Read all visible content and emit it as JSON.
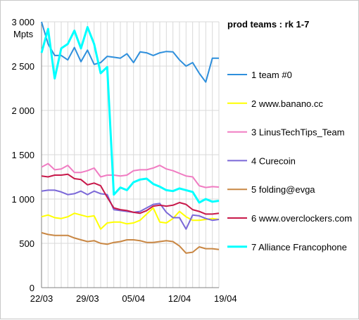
{
  "chart_data": {
    "type": "line",
    "title": "prod teams : rk 1-7",
    "ylabel": "Mpts",
    "xlabel": "",
    "ylim": [
      0,
      3000
    ],
    "yticks": [
      0,
      500,
      1000,
      1500,
      2000,
      2500,
      3000
    ],
    "ytick_labels": [
      "0",
      "500",
      "1 000",
      "1 500",
      "2 000",
      "2 500",
      "3 000"
    ],
    "x_start": "2020-03-22",
    "xticks": [
      "22/03",
      "29/03",
      "05/04",
      "12/04",
      "19/04"
    ],
    "grid": true,
    "legend_position": "right",
    "series": [
      {
        "name": "1 team #0",
        "color": "#2e8fdc",
        "values": [
          3000,
          2750,
          2620,
          2620,
          2570,
          2710,
          2550,
          2680,
          2520,
          2540,
          2610,
          2600,
          2590,
          2640,
          2540,
          2660,
          2650,
          2620,
          2650,
          2665,
          2660,
          2570,
          2500,
          2540,
          2420,
          2320,
          2590,
          2590
        ]
      },
      {
        "name": "2 www.banano.cc",
        "color": "#ffff00",
        "values": [
          800,
          820,
          790,
          780,
          800,
          840,
          820,
          800,
          810,
          660,
          730,
          740,
          740,
          720,
          730,
          760,
          830,
          900,
          740,
          730,
          780,
          860,
          800,
          760,
          760,
          770,
          780,
          770
        ]
      },
      {
        "name": "3 LinusTechTips_Team",
        "color": "#f07cc2",
        "values": [
          1360,
          1400,
          1330,
          1340,
          1380,
          1300,
          1300,
          1320,
          1350,
          1250,
          1270,
          1270,
          1260,
          1270,
          1320,
          1330,
          1330,
          1350,
          1380,
          1340,
          1320,
          1290,
          1260,
          1250,
          1150,
          1130,
          1140,
          1135
        ]
      },
      {
        "name": "4 Curecoin",
        "color": "#7b68d8",
        "values": [
          1090,
          1100,
          1100,
          1080,
          1050,
          1060,
          1090,
          1050,
          1090,
          1060,
          1050,
          880,
          870,
          860,
          850,
          860,
          900,
          940,
          950,
          850,
          790,
          790,
          660,
          820,
          810,
          780,
          760,
          770
        ]
      },
      {
        "name": "5 folding@evga",
        "color": "#c98743",
        "values": [
          620,
          600,
          590,
          590,
          590,
          560,
          540,
          520,
          530,
          500,
          490,
          510,
          520,
          540,
          540,
          530,
          510,
          510,
          520,
          530,
          520,
          470,
          390,
          400,
          460,
          440,
          440,
          430
        ]
      },
      {
        "name": "6 www.overclockers.com",
        "color": "#c8194a",
        "values": [
          1260,
          1250,
          1270,
          1270,
          1280,
          1230,
          1220,
          1160,
          1180,
          1150,
          1020,
          900,
          880,
          870,
          850,
          840,
          870,
          920,
          930,
          920,
          930,
          960,
          940,
          880,
          860,
          830,
          830,
          840
        ]
      },
      {
        "name": "7 Alliance Francophone",
        "color": "#00ffff",
        "values": [
          2650,
          2920,
          2360,
          2700,
          2750,
          2900,
          2700,
          2940,
          2750,
          2420,
          2490,
          1050,
          1130,
          1100,
          1190,
          1220,
          1230,
          1170,
          1140,
          1100,
          1090,
          1120,
          1100,
          1080,
          960,
          1000,
          970,
          980
        ]
      }
    ]
  }
}
